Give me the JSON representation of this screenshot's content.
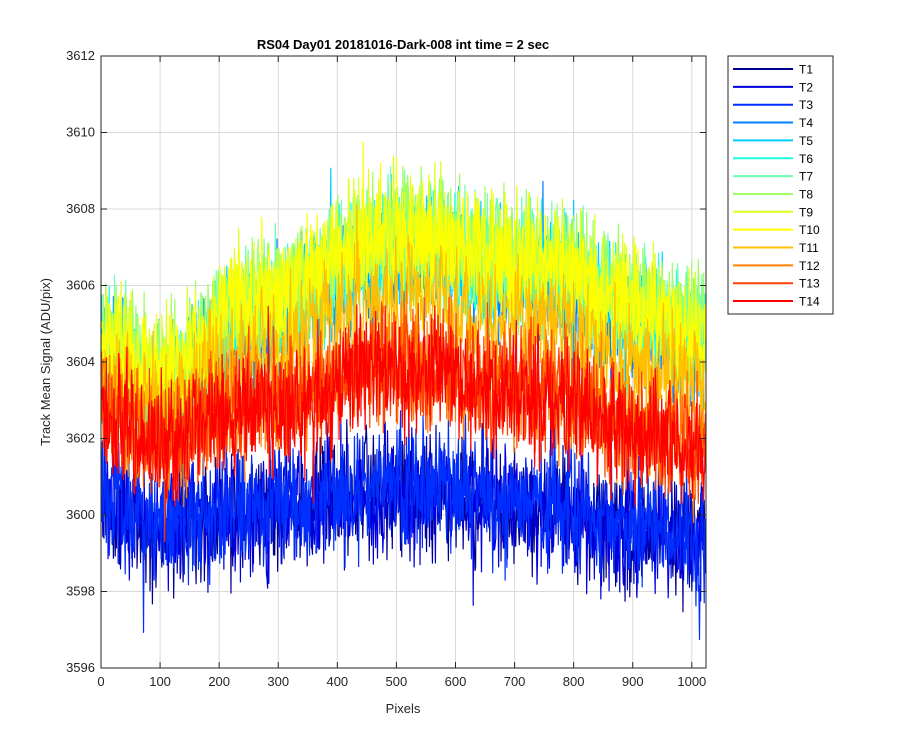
{
  "chart_data": {
    "type": "line",
    "title": "RS04 Day01 20181016-Dark-008 int time = 2 sec",
    "xlabel": "Pixels",
    "ylabel": "Track Mean Signal (ADU/pix)",
    "xlim": [
      0,
      1024
    ],
    "ylim": [
      3596,
      3612
    ],
    "x_ticks": [
      0,
      100,
      200,
      300,
      400,
      500,
      600,
      700,
      800,
      900,
      1000
    ],
    "y_ticks": [
      3596,
      3598,
      3600,
      3602,
      3604,
      3606,
      3608,
      3610,
      3612
    ],
    "grid": true,
    "legend_position": "outside-top-right",
    "x_count": 1024,
    "noise_note": "each series shows high-frequency pixel-to-pixel noise of roughly +/-1.5 ADU around its mean profile",
    "series": [
      {
        "name": "T1",
        "color": "#00008f",
        "mean_profile": {
          "x": [
            0,
            100,
            250,
            500,
            750,
            900,
            1024
          ],
          "y": [
            3600.4,
            3599.5,
            3600.0,
            3600.6,
            3600.1,
            3599.6,
            3599.2
          ]
        }
      },
      {
        "name": "T2",
        "color": "#0000df",
        "mean_profile": {
          "x": [
            0,
            100,
            250,
            500,
            750,
            900,
            1024
          ],
          "y": [
            3600.4,
            3599.5,
            3600.0,
            3600.6,
            3600.1,
            3599.6,
            3599.2
          ]
        }
      },
      {
        "name": "T3",
        "color": "#0030ff",
        "mean_profile": {
          "x": [
            0,
            100,
            250,
            500,
            750,
            900,
            1024
          ],
          "y": [
            3600.6,
            3599.7,
            3600.2,
            3600.8,
            3600.3,
            3599.8,
            3599.4
          ]
        }
      },
      {
        "name": "T4",
        "color": "#0080ff",
        "mean_profile": {
          "x": [
            0,
            100,
            250,
            500,
            750,
            900,
            1024
          ],
          "y": [
            3604.0,
            3603.0,
            3605.0,
            3606.8,
            3606.0,
            3605.0,
            3604.3
          ]
        }
      },
      {
        "name": "T5",
        "color": "#00cfff",
        "mean_profile": {
          "x": [
            0,
            100,
            250,
            500,
            750,
            900,
            1024
          ],
          "y": [
            3604.2,
            3603.2,
            3605.2,
            3607.0,
            3606.2,
            3605.2,
            3604.5
          ]
        }
      },
      {
        "name": "T6",
        "color": "#20ffdf",
        "mean_profile": {
          "x": [
            0,
            100,
            250,
            500,
            750,
            900,
            1024
          ],
          "y": [
            3604.3,
            3603.3,
            3605.3,
            3607.1,
            3606.3,
            3605.3,
            3604.6
          ]
        }
      },
      {
        "name": "T7",
        "color": "#70ffb0",
        "mean_profile": {
          "x": [
            0,
            100,
            250,
            500,
            750,
            900,
            1024
          ],
          "y": [
            3604.5,
            3603.5,
            3605.5,
            3607.3,
            3606.5,
            3605.5,
            3604.8
          ]
        }
      },
      {
        "name": "T8",
        "color": "#9fff60",
        "mean_profile": {
          "x": [
            0,
            100,
            250,
            500,
            750,
            900,
            1024
          ],
          "y": [
            3604.6,
            3603.6,
            3605.6,
            3607.4,
            3606.6,
            3605.6,
            3604.9
          ]
        }
      },
      {
        "name": "T9",
        "color": "#dfff20",
        "mean_profile": {
          "x": [
            0,
            100,
            250,
            500,
            750,
            900,
            1024
          ],
          "y": [
            3604.7,
            3603.7,
            3605.7,
            3607.5,
            3606.7,
            3605.7,
            3605.0
          ]
        }
      },
      {
        "name": "T10",
        "color": "#ffff00",
        "mean_profile": {
          "x": [
            0,
            100,
            250,
            500,
            750,
            900,
            1024
          ],
          "y": [
            3604.5,
            3603.6,
            3605.5,
            3607.2,
            3606.4,
            3605.4,
            3604.7
          ]
        }
      },
      {
        "name": "T11",
        "color": "#ffbf00",
        "mean_profile": {
          "x": [
            0,
            100,
            250,
            500,
            750,
            900,
            1024
          ],
          "y": [
            3603.6,
            3602.8,
            3604.2,
            3605.6,
            3605.0,
            3604.0,
            3603.4
          ]
        }
      },
      {
        "name": "T12",
        "color": "#ff8000",
        "mean_profile": {
          "x": [
            0,
            100,
            250,
            500,
            750,
            900,
            1024
          ],
          "y": [
            3602.8,
            3602.0,
            3603.0,
            3604.0,
            3603.3,
            3602.4,
            3601.8
          ]
        }
      },
      {
        "name": "T13",
        "color": "#ff4000",
        "mean_profile": {
          "x": [
            0,
            100,
            250,
            500,
            750,
            900,
            1024
          ],
          "y": [
            3602.7,
            3601.9,
            3602.9,
            3603.9,
            3603.2,
            3602.3,
            3601.7
          ]
        }
      },
      {
        "name": "T14",
        "color": "#ff0000",
        "mean_profile": {
          "x": [
            0,
            100,
            250,
            500,
            750,
            900,
            1024
          ],
          "y": [
            3602.6,
            3601.8,
            3602.8,
            3603.8,
            3603.1,
            3602.2,
            3601.6
          ]
        }
      }
    ]
  }
}
